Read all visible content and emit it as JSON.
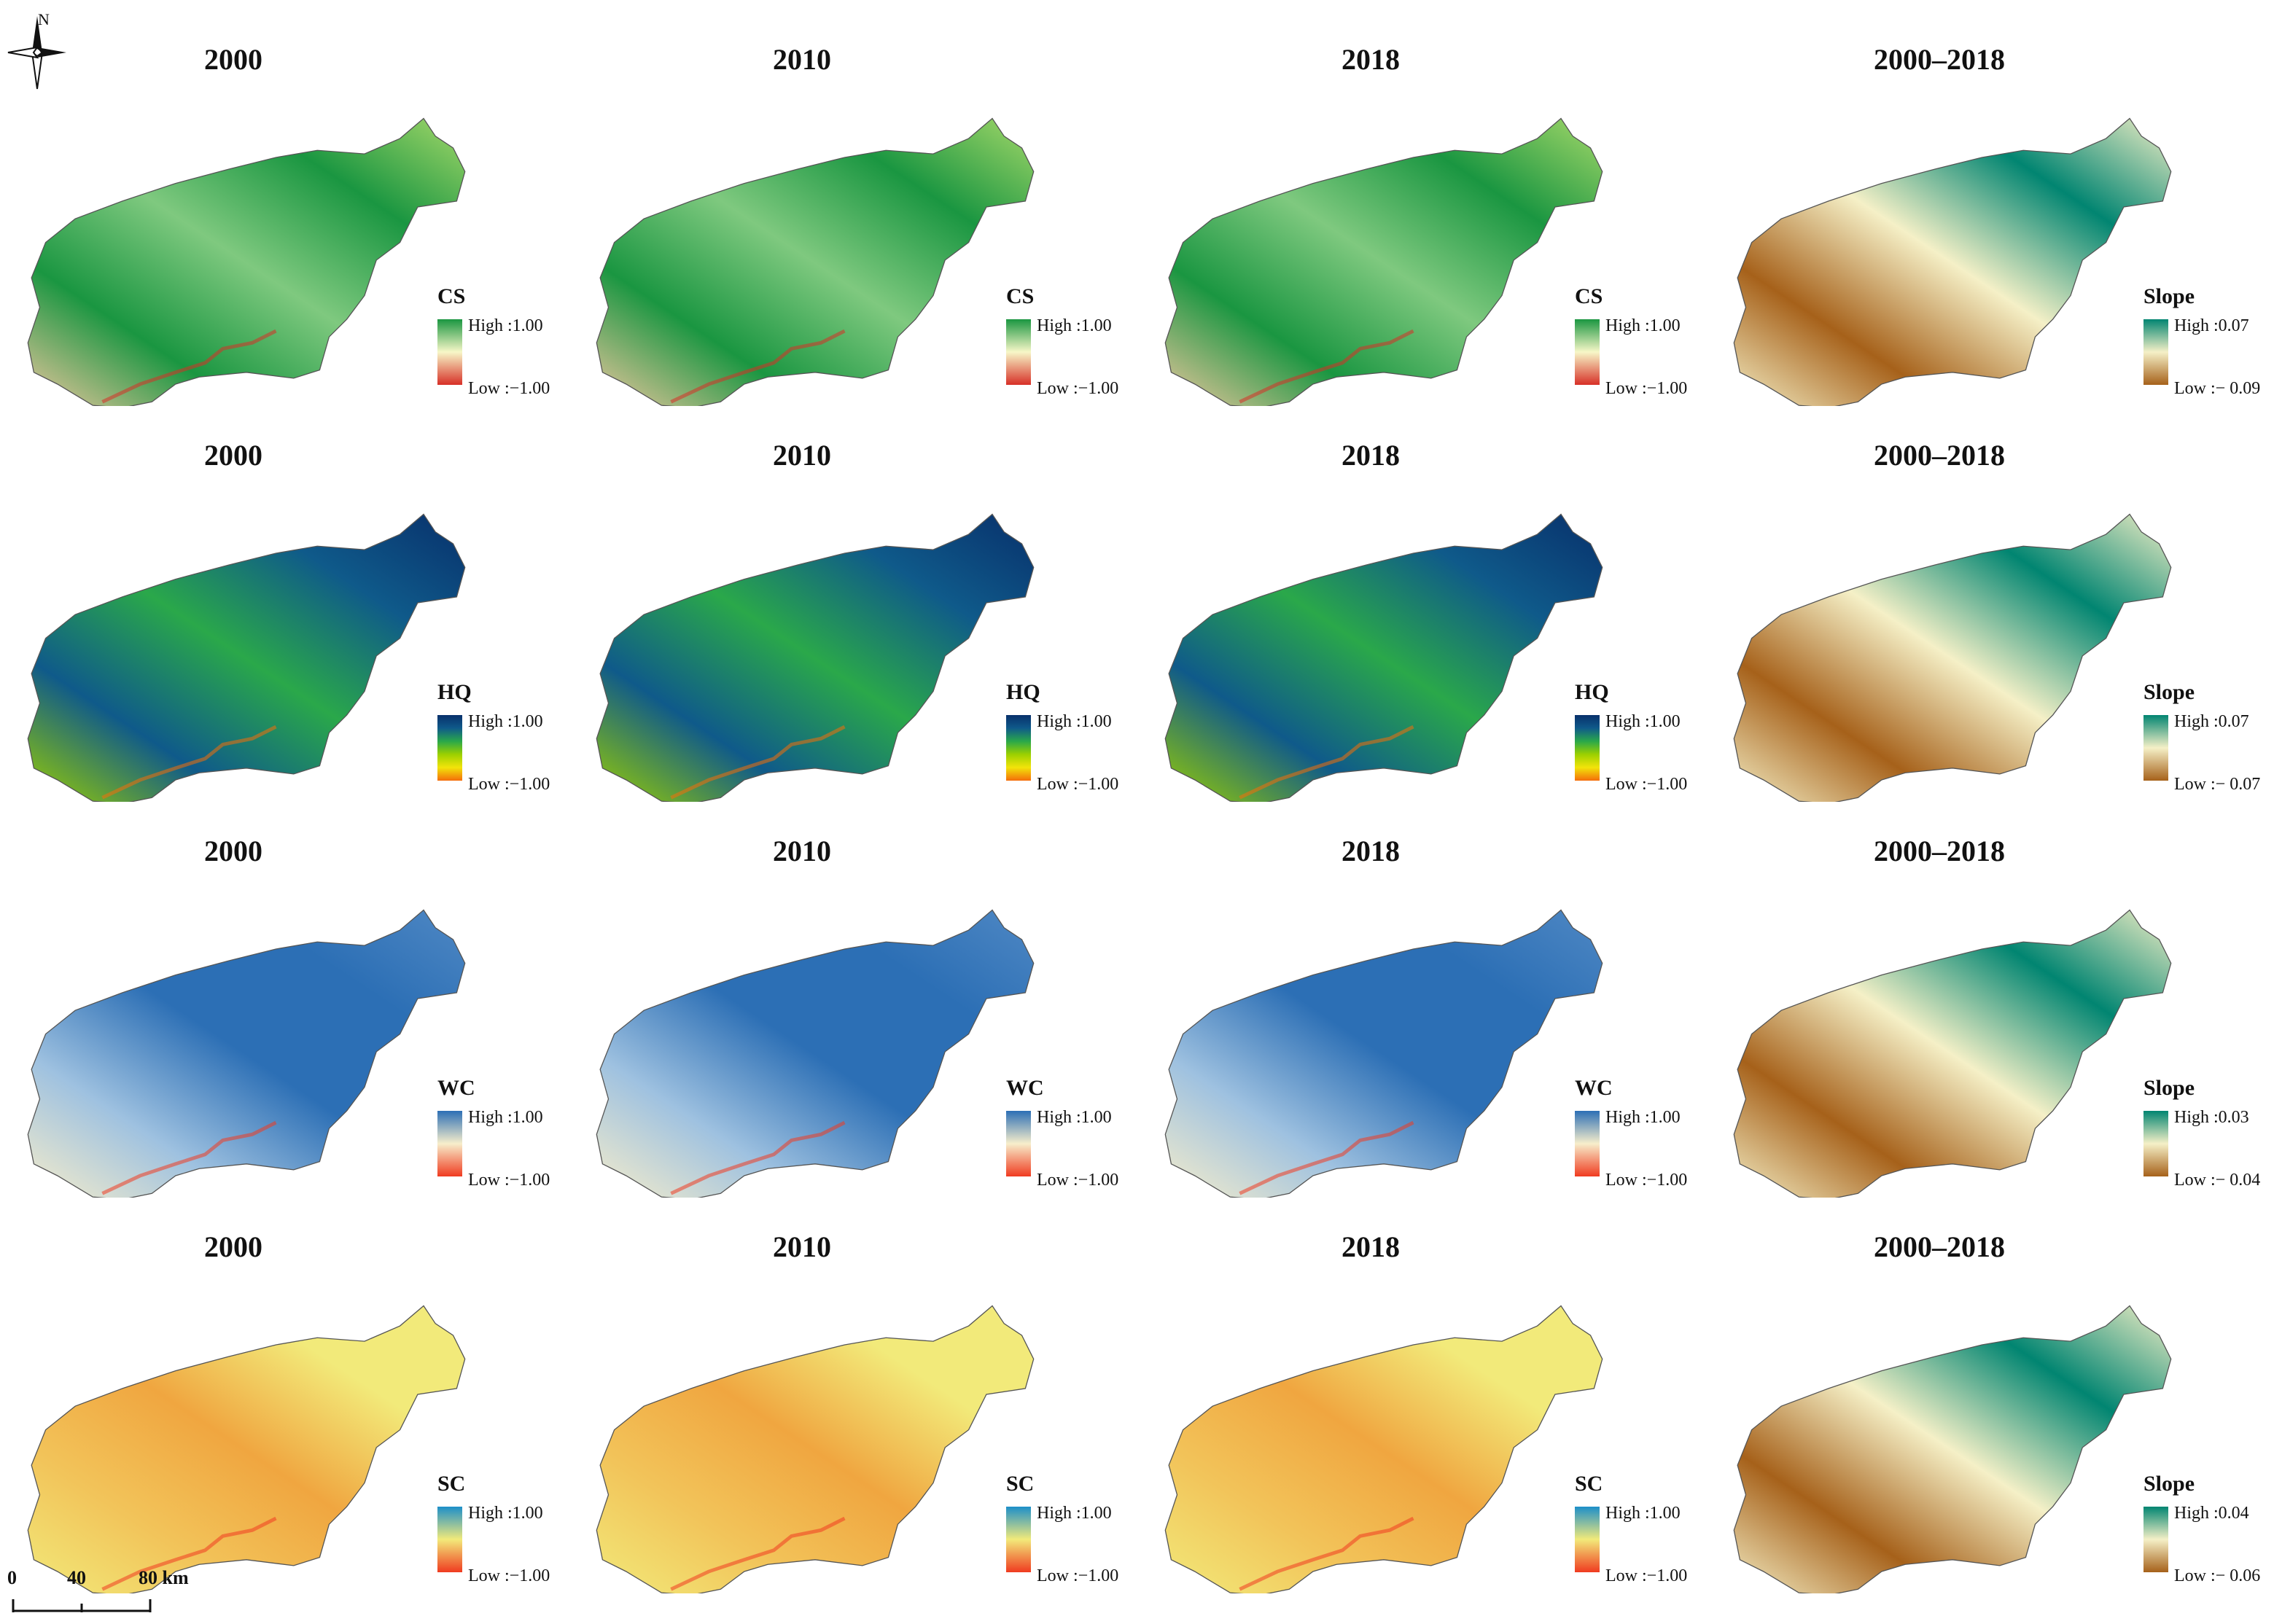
{
  "north": {
    "label": "N",
    "icon": "north-arrow-icon"
  },
  "scale": {
    "labels": [
      "0",
      "40",
      "80 km"
    ]
  },
  "colors": {
    "CS": [
      "#d73027",
      "#f7f7c8",
      "#1a9641"
    ],
    "HQ": [
      "#f46d0a",
      "#f2e40a",
      "#9bd000",
      "#2aa84a",
      "#0f5a8a",
      "#08306b"
    ],
    "WC": [
      "#f03b20",
      "#f7eecb",
      "#2c6fb5"
    ],
    "SC": [
      "#f03b20",
      "#f2ea7a",
      "#1d8fc9"
    ],
    "SLOPE": [
      "#a6611a",
      "#f5f0c7",
      "#018571"
    ]
  },
  "rows": [
    {
      "legend_name": "CS",
      "legend_high": "High :1.00",
      "legend_low": "Low :−1.00",
      "slope_name": "Slope",
      "slope_high": "High :0.07",
      "slope_low": "Low :− 0.09"
    },
    {
      "legend_name": "HQ",
      "legend_high": "High :1.00",
      "legend_low": "Low :−1.00",
      "slope_name": "Slope",
      "slope_high": "High :0.07",
      "slope_low": "Low :− 0.07"
    },
    {
      "legend_name": "WC",
      "legend_high": "High :1.00",
      "legend_low": "Low :−1.00",
      "slope_name": "Slope",
      "slope_high": "High :0.03",
      "slope_low": "Low :− 0.04"
    },
    {
      "legend_name": "SC",
      "legend_high": "High :1.00",
      "legend_low": "Low :−1.00",
      "slope_name": "Slope",
      "slope_high": "High :0.04",
      "slope_low": "Low :− 0.06"
    }
  ],
  "columns": [
    "2000",
    "2010",
    "2018",
    "2000–2018"
  ]
}
